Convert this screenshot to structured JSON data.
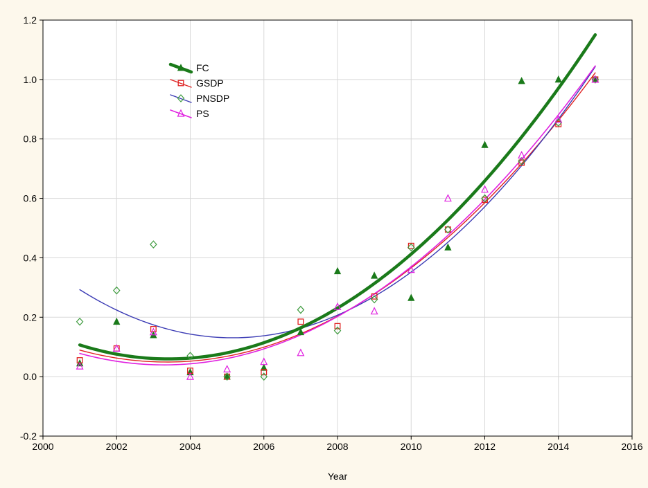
{
  "chart_data": {
    "type": "scatter",
    "title": "",
    "xlabel": "Year",
    "ylabel": "",
    "xlim": [
      2000,
      2016
    ],
    "ylim": [
      -0.2,
      1.2
    ],
    "x_ticks": [
      2000,
      2002,
      2004,
      2006,
      2008,
      2010,
      2012,
      2014,
      2016
    ],
    "y_ticks": [
      -0.2,
      0.0,
      0.2,
      0.4,
      0.6,
      0.8,
      1.0,
      1.2
    ],
    "x_tick_labels": [
      "2000",
      "2002",
      "2004",
      "2006",
      "2008",
      "2010",
      "2012",
      "2014",
      "2016"
    ],
    "y_tick_labels": [
      "-0.2",
      "0.0",
      "0.2",
      "0.4",
      "0.6",
      "0.8",
      "1.0",
      "1.2"
    ],
    "grid": true,
    "legend_position": "top-left",
    "fit": "quadratic",
    "series": [
      {
        "name": "FC",
        "marker": "filled-triangle",
        "color": "#1a7a1a",
        "x": [
          2001,
          2002,
          2003,
          2004,
          2005,
          2006,
          2007,
          2008,
          2009,
          2010,
          2011,
          2012,
          2013,
          2014,
          2015
        ],
        "values": [
          0.045,
          0.185,
          0.14,
          0.015,
          0.0,
          0.03,
          0.15,
          0.355,
          0.34,
          0.265,
          0.435,
          0.78,
          0.995,
          1.0,
          1.0
        ]
      },
      {
        "name": "GSDP",
        "marker": "open-square",
        "color": "#e02020",
        "x": [
          2001,
          2002,
          2003,
          2004,
          2005,
          2006,
          2007,
          2008,
          2009,
          2010,
          2011,
          2012,
          2013,
          2014,
          2015
        ],
        "values": [
          0.055,
          0.095,
          0.16,
          0.02,
          0.0,
          0.015,
          0.185,
          0.17,
          0.27,
          0.44,
          0.495,
          0.595,
          0.72,
          0.85,
          1.0
        ]
      },
      {
        "name": "PNSDP",
        "marker": "open-diamond",
        "color": "#3c9a3c",
        "fit_color": "#3a3ab4",
        "x": [
          2001,
          2002,
          2003,
          2004,
          2005,
          2006,
          2007,
          2008,
          2009,
          2010,
          2011,
          2012,
          2013,
          2014,
          2015
        ],
        "values": [
          0.185,
          0.29,
          0.445,
          0.07,
          0.0,
          0.0,
          0.225,
          0.155,
          0.26,
          0.435,
          0.495,
          0.6,
          0.725,
          0.855,
          1.0
        ]
      },
      {
        "name": "PS",
        "marker": "open-triangle",
        "color": "#e020e0",
        "x": [
          2001,
          2002,
          2003,
          2004,
          2005,
          2006,
          2007,
          2008,
          2009,
          2010,
          2011,
          2012,
          2013,
          2014,
          2015
        ],
        "values": [
          0.035,
          0.095,
          0.15,
          0.0,
          0.025,
          0.05,
          0.08,
          0.235,
          0.22,
          0.36,
          0.6,
          0.63,
          0.745,
          0.865,
          1.0
        ]
      }
    ]
  }
}
